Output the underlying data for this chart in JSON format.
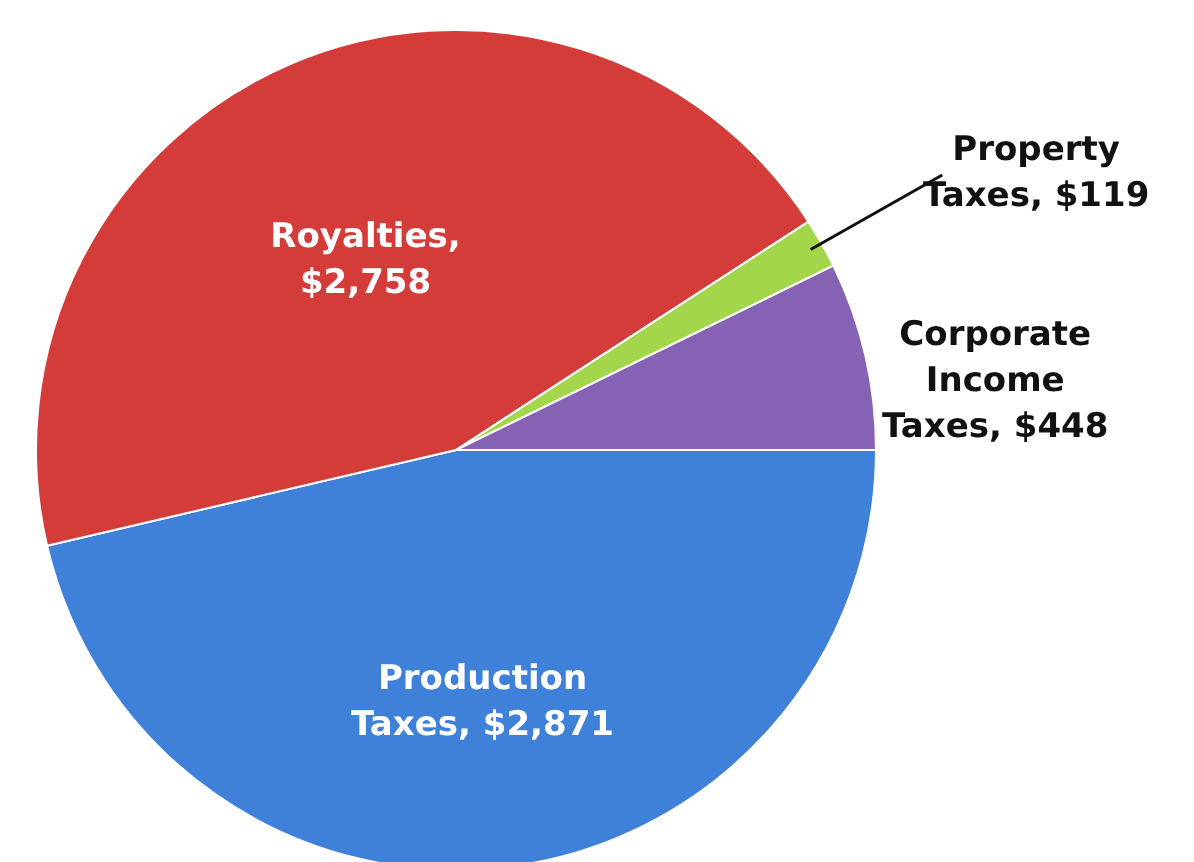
{
  "chart_data": {
    "type": "pie",
    "categories": [
      "Production Taxes, $2,871",
      "Royalties, $2,758",
      "Property Taxes, $119",
      "Corporate Income Taxes, $448"
    ],
    "values": [
      2871,
      2758,
      119,
      448
    ],
    "colors": [
      "#3f80d8",
      "#d43c3a",
      "#a4d64c",
      "#8662b4"
    ]
  }
}
